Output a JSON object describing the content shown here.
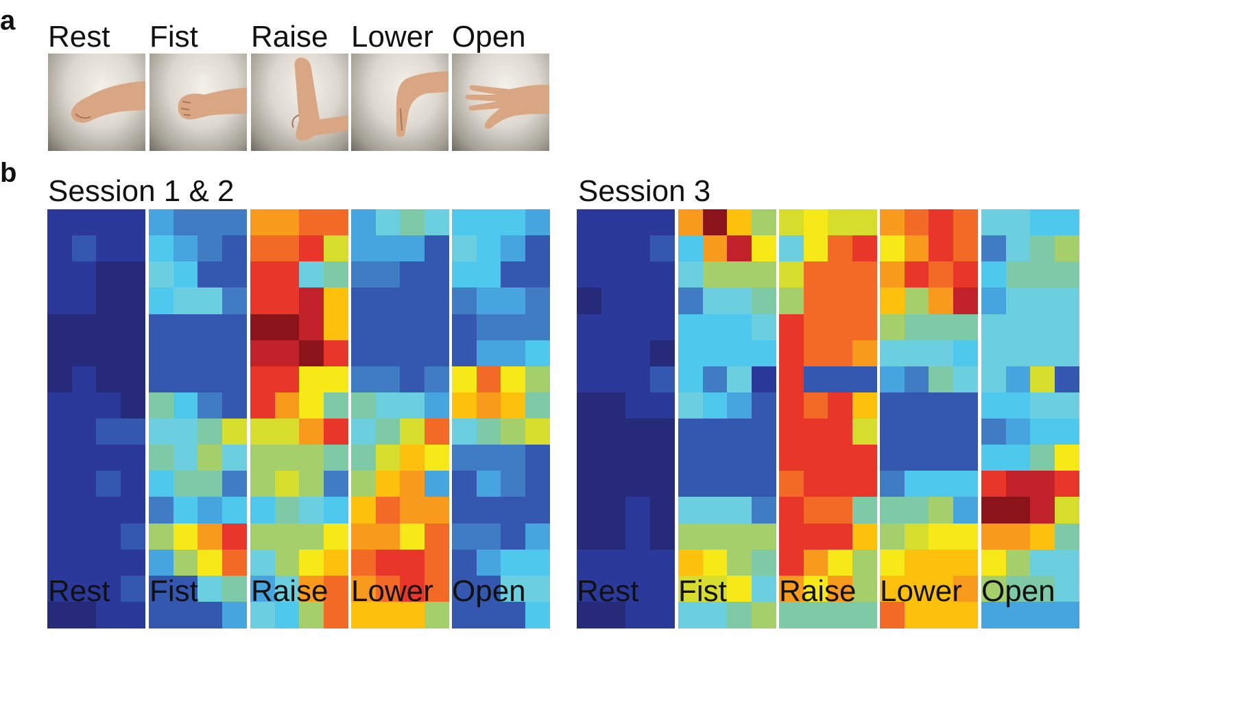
{
  "panels": {
    "a": {
      "letter": "a"
    },
    "b": {
      "letter": "b"
    }
  },
  "gestures": [
    "Rest",
    "Fist",
    "Raise",
    "Lower",
    "Open"
  ],
  "photos": [
    {
      "label": "Rest",
      "icon": "hand-rest-photo"
    },
    {
      "label": "Fist",
      "icon": "hand-fist-photo"
    },
    {
      "label": "Raise",
      "icon": "hand-raise-photo"
    },
    {
      "label": "Lower",
      "icon": "hand-lower-photo"
    },
    {
      "label": "Open",
      "icon": "hand-open-photo"
    }
  ],
  "sessions": [
    {
      "label": "Session 1 & 2"
    },
    {
      "label": "Session 3"
    }
  ],
  "colors": {
    "background": "#ffffff",
    "skin": "#d9a683",
    "colormap": [
      "#262a78",
      "#2b3a9a",
      "#3457b0",
      "#3f7cc4",
      "#46a5de",
      "#4fc8ee",
      "#6ccfe0",
      "#7fcaa6",
      "#a4cf6a",
      "#d7dd2d",
      "#f7e917",
      "#fdc00d",
      "#f89a1c",
      "#f26a25",
      "#e8372a",
      "#c1222a",
      "#8a1419"
    ]
  },
  "chart_data": {
    "type": "heatmap",
    "grid": {
      "rows": 16,
      "cols": 4
    },
    "color_scale": "jet (0 = dark blue, 16 = dark red)",
    "maps": [
      {
        "session": "Session 1 & 2",
        "gesture": "Rest",
        "values": [
          [
            1,
            1,
            1,
            1
          ],
          [
            1,
            2,
            1,
            1
          ],
          [
            1,
            1,
            0,
            0
          ],
          [
            1,
            1,
            0,
            0
          ],
          [
            0,
            0,
            0,
            0
          ],
          [
            0,
            0,
            0,
            0
          ],
          [
            0,
            1,
            0,
            0
          ],
          [
            1,
            1,
            1,
            0
          ],
          [
            1,
            1,
            2,
            2
          ],
          [
            1,
            1,
            1,
            1
          ],
          [
            1,
            1,
            2,
            1
          ],
          [
            1,
            1,
            1,
            1
          ],
          [
            1,
            1,
            1,
            2
          ],
          [
            1,
            1,
            1,
            1
          ],
          [
            1,
            1,
            1,
            2
          ],
          [
            0,
            0,
            1,
            1
          ]
        ]
      },
      {
        "session": "Session 1 & 2",
        "gesture": "Fist",
        "values": [
          [
            4,
            3,
            3,
            3
          ],
          [
            5,
            4,
            3,
            2
          ],
          [
            6,
            5,
            2,
            2
          ],
          [
            5,
            6,
            6,
            3
          ],
          [
            2,
            2,
            2,
            2
          ],
          [
            2,
            2,
            2,
            2
          ],
          [
            2,
            2,
            2,
            2
          ],
          [
            7,
            5,
            3,
            2
          ],
          [
            6,
            6,
            7,
            9
          ],
          [
            7,
            6,
            8,
            6
          ],
          [
            5,
            7,
            7,
            3
          ],
          [
            3,
            5,
            4,
            5
          ],
          [
            8,
            10,
            12,
            14
          ],
          [
            4,
            8,
            10,
            13
          ],
          [
            2,
            2,
            6,
            7
          ],
          [
            2,
            2,
            2,
            4
          ]
        ]
      },
      {
        "session": "Session 1 & 2",
        "gesture": "Raise",
        "values": [
          [
            12,
            12,
            13,
            13
          ],
          [
            13,
            13,
            14,
            9
          ],
          [
            14,
            14,
            6,
            7
          ],
          [
            14,
            14,
            15,
            11
          ],
          [
            16,
            16,
            15,
            11
          ],
          [
            15,
            15,
            16,
            14
          ],
          [
            14,
            14,
            10,
            10
          ],
          [
            14,
            12,
            10,
            7
          ],
          [
            9,
            9,
            12,
            14
          ],
          [
            8,
            8,
            8,
            7
          ],
          [
            8,
            9,
            8,
            3
          ],
          [
            5,
            7,
            6,
            5
          ],
          [
            8,
            8,
            8,
            10
          ],
          [
            6,
            8,
            10,
            11
          ],
          [
            4,
            6,
            12,
            13
          ],
          [
            6,
            5,
            8,
            13
          ]
        ]
      },
      {
        "session": "Session 1 & 2",
        "gesture": "Lower",
        "values": [
          [
            4,
            6,
            7,
            6
          ],
          [
            4,
            4,
            4,
            2
          ],
          [
            3,
            3,
            2,
            2
          ],
          [
            2,
            2,
            2,
            2
          ],
          [
            2,
            2,
            2,
            2
          ],
          [
            2,
            2,
            2,
            2
          ],
          [
            3,
            3,
            2,
            3
          ],
          [
            7,
            6,
            6,
            4
          ],
          [
            6,
            7,
            9,
            13
          ],
          [
            7,
            9,
            11,
            10
          ],
          [
            8,
            11,
            12,
            4
          ],
          [
            11,
            13,
            12,
            12
          ],
          [
            12,
            12,
            10,
            13
          ],
          [
            13,
            14,
            14,
            13
          ],
          [
            12,
            13,
            14,
            13
          ],
          [
            11,
            11,
            11,
            8
          ]
        ]
      },
      {
        "session": "Session 1 & 2",
        "gesture": "Open",
        "values": [
          [
            5,
            5,
            5,
            4
          ],
          [
            6,
            5,
            4,
            2
          ],
          [
            5,
            5,
            2,
            2
          ],
          [
            3,
            4,
            4,
            3
          ],
          [
            2,
            3,
            3,
            3
          ],
          [
            2,
            4,
            4,
            5
          ],
          [
            10,
            13,
            10,
            8
          ],
          [
            11,
            12,
            11,
            7
          ],
          [
            6,
            7,
            8,
            9
          ],
          [
            3,
            3,
            3,
            2
          ],
          [
            2,
            4,
            3,
            2
          ],
          [
            2,
            2,
            2,
            2
          ],
          [
            3,
            3,
            2,
            4
          ],
          [
            2,
            4,
            5,
            5
          ],
          [
            2,
            2,
            6,
            6
          ],
          [
            2,
            2,
            2,
            5
          ]
        ]
      },
      {
        "session": "Session 3",
        "gesture": "Rest",
        "values": [
          [
            1,
            1,
            1,
            1
          ],
          [
            1,
            1,
            1,
            2
          ],
          [
            1,
            1,
            1,
            1
          ],
          [
            0,
            1,
            1,
            1
          ],
          [
            1,
            1,
            1,
            1
          ],
          [
            1,
            1,
            1,
            0
          ],
          [
            1,
            1,
            1,
            2
          ],
          [
            0,
            0,
            1,
            1
          ],
          [
            0,
            0,
            0,
            0
          ],
          [
            0,
            0,
            0,
            0
          ],
          [
            0,
            0,
            0,
            0
          ],
          [
            0,
            0,
            1,
            0
          ],
          [
            0,
            0,
            1,
            0
          ],
          [
            1,
            1,
            1,
            1
          ],
          [
            1,
            1,
            1,
            1
          ],
          [
            0,
            0,
            1,
            1
          ]
        ]
      },
      {
        "session": "Session 3",
        "gesture": "Fist",
        "values": [
          [
            12,
            16,
            11,
            8
          ],
          [
            5,
            12,
            15,
            10
          ],
          [
            6,
            8,
            8,
            8
          ],
          [
            3,
            6,
            6,
            7
          ],
          [
            5,
            5,
            5,
            6
          ],
          [
            5,
            5,
            5,
            5
          ],
          [
            5,
            3,
            6,
            1
          ],
          [
            6,
            5,
            4,
            2
          ],
          [
            2,
            2,
            2,
            2
          ],
          [
            2,
            2,
            2,
            2
          ],
          [
            2,
            2,
            2,
            2
          ],
          [
            6,
            6,
            6,
            3
          ],
          [
            8,
            8,
            8,
            8
          ],
          [
            11,
            10,
            8,
            7
          ],
          [
            9,
            9,
            10,
            6
          ],
          [
            6,
            6,
            7,
            8
          ]
        ]
      },
      {
        "session": "Session 3",
        "gesture": "Raise",
        "values": [
          [
            9,
            10,
            9,
            9
          ],
          [
            6,
            10,
            13,
            14
          ],
          [
            9,
            13,
            13,
            13
          ],
          [
            8,
            13,
            13,
            13
          ],
          [
            14,
            13,
            13,
            13
          ],
          [
            14,
            13,
            13,
            12
          ],
          [
            14,
            2,
            2,
            2
          ],
          [
            14,
            13,
            14,
            11
          ],
          [
            14,
            14,
            14,
            9
          ],
          [
            14,
            14,
            14,
            14
          ],
          [
            13,
            14,
            14,
            14
          ],
          [
            14,
            13,
            13,
            7
          ],
          [
            14,
            14,
            14,
            11
          ],
          [
            14,
            12,
            10,
            8
          ],
          [
            12,
            10,
            12,
            8
          ],
          [
            7,
            7,
            7,
            7
          ]
        ]
      },
      {
        "session": "Session 3",
        "gesture": "Lower",
        "values": [
          [
            12,
            13,
            14,
            13
          ],
          [
            10,
            12,
            14,
            13
          ],
          [
            12,
            14,
            13,
            14
          ],
          [
            11,
            8,
            12,
            15
          ],
          [
            8,
            7,
            7,
            7
          ],
          [
            6,
            6,
            6,
            5
          ],
          [
            4,
            3,
            7,
            6
          ],
          [
            2,
            2,
            2,
            2
          ],
          [
            2,
            2,
            2,
            2
          ],
          [
            2,
            2,
            2,
            2
          ],
          [
            3,
            5,
            5,
            5
          ],
          [
            7,
            7,
            8,
            4
          ],
          [
            8,
            9,
            10,
            10
          ],
          [
            10,
            11,
            11,
            11
          ],
          [
            11,
            11,
            11,
            12
          ],
          [
            13,
            11,
            11,
            11
          ]
        ]
      },
      {
        "session": "Session 3",
        "gesture": "Open",
        "values": [
          [
            6,
            6,
            5,
            5
          ],
          [
            3,
            6,
            7,
            8
          ],
          [
            5,
            7,
            7,
            7
          ],
          [
            4,
            6,
            6,
            6
          ],
          [
            6,
            6,
            6,
            6
          ],
          [
            6,
            6,
            6,
            6
          ],
          [
            6,
            4,
            9,
            2
          ],
          [
            5,
            5,
            6,
            6
          ],
          [
            3,
            4,
            5,
            5
          ],
          [
            5,
            5,
            7,
            10
          ],
          [
            14,
            15,
            15,
            14
          ],
          [
            16,
            16,
            15,
            9
          ],
          [
            12,
            12,
            11,
            7
          ],
          [
            10,
            8,
            6,
            6
          ],
          [
            8,
            7,
            7,
            6
          ],
          [
            4,
            4,
            4,
            4
          ]
        ]
      }
    ]
  }
}
